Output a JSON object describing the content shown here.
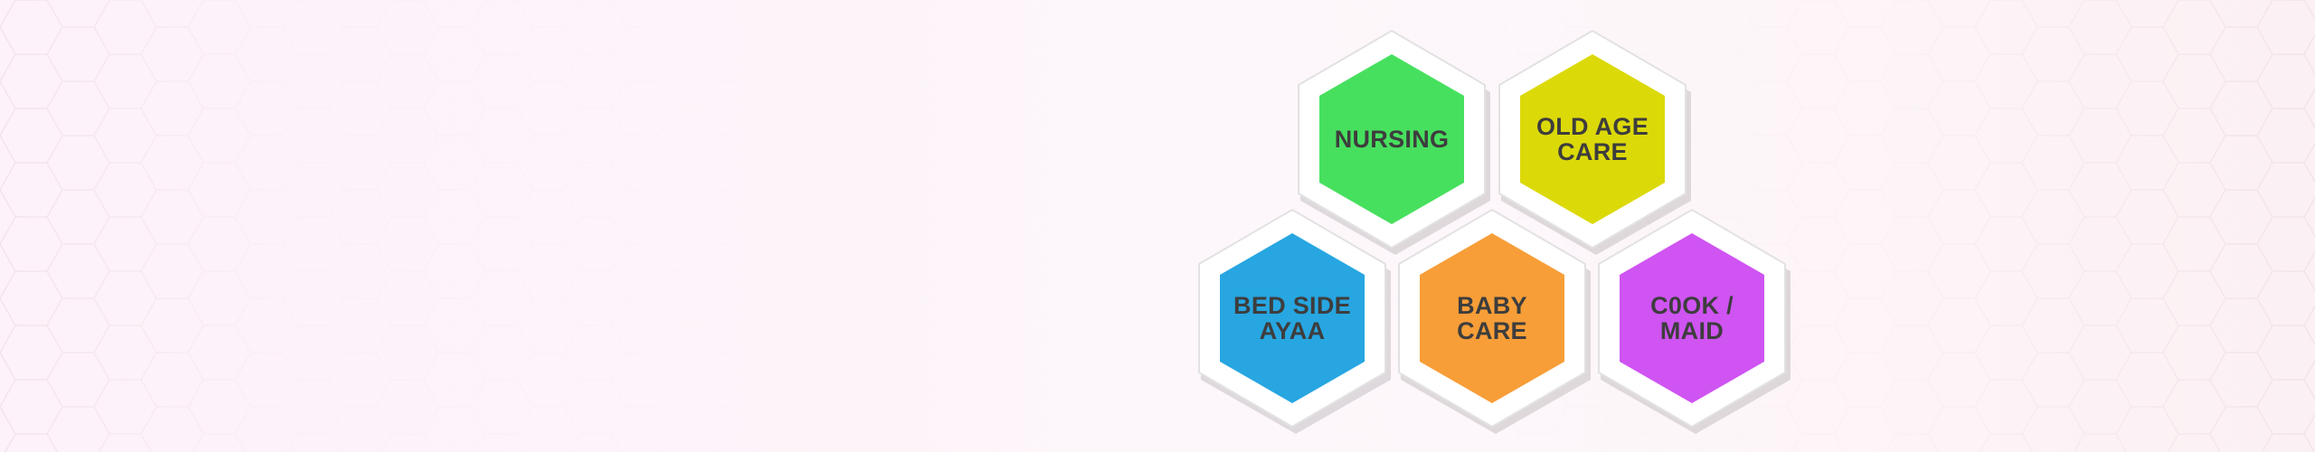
{
  "services": [
    {
      "line1": "NURSING",
      "line2": "",
      "color": "#47e05e",
      "icon": "hexagon"
    },
    {
      "line1": "OLD AGE",
      "line2": "CARE",
      "color": "#dcd909",
      "icon": "hexagon"
    },
    {
      "line1": "BED SIDE",
      "line2": "AYAA",
      "color": "#27a6e1",
      "icon": "hexagon"
    },
    {
      "line1": "BABY",
      "line2": "CARE",
      "color": "#f79e38",
      "icon": "hexagon"
    },
    {
      "line1": "C0OK /",
      "line2": "MAID",
      "color": "#cf54f2",
      "icon": "hexagon"
    }
  ],
  "colors": {
    "background": "#fdf4f9",
    "tile_frame": "#ffffff",
    "label_text": "#3d3d3d"
  }
}
